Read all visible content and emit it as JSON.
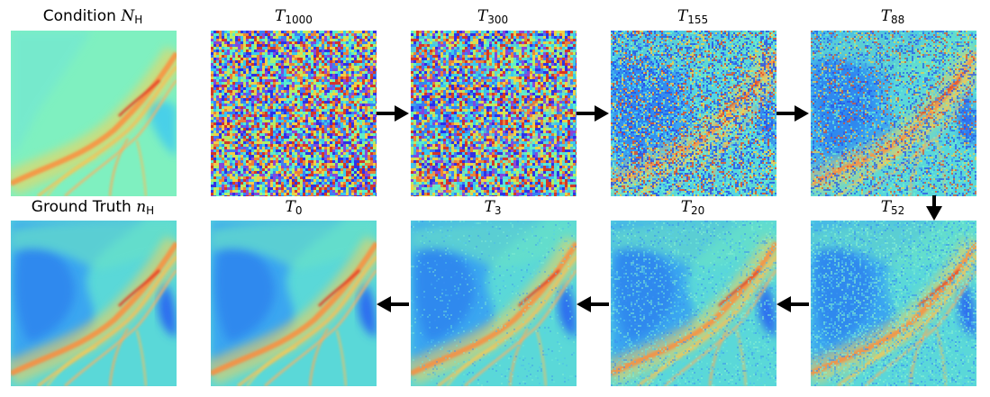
{
  "figure": {
    "condition": {
      "text": "Condition ",
      "sym": "N",
      "sub": "H"
    },
    "ground_truth": {
      "text": "Ground Truth ",
      "sym": "n",
      "sub": "H"
    },
    "steps_top": [
      {
        "sym": "T",
        "sub": "1000",
        "noise": 1.0
      },
      {
        "sym": "T",
        "sub": "300",
        "noise": 0.82
      },
      {
        "sym": "T",
        "sub": "155",
        "noise": 0.6
      },
      {
        "sym": "T",
        "sub": "88",
        "noise": 0.45
      }
    ],
    "steps_bottom": [
      {
        "sym": "T",
        "sub": "0",
        "noise": 0.0
      },
      {
        "sym": "T",
        "sub": "3",
        "noise": 0.08
      },
      {
        "sym": "T",
        "sub": "20",
        "noise": 0.22
      },
      {
        "sym": "T",
        "sub": "52",
        "noise": 0.33
      }
    ],
    "colormap": "jet"
  }
}
